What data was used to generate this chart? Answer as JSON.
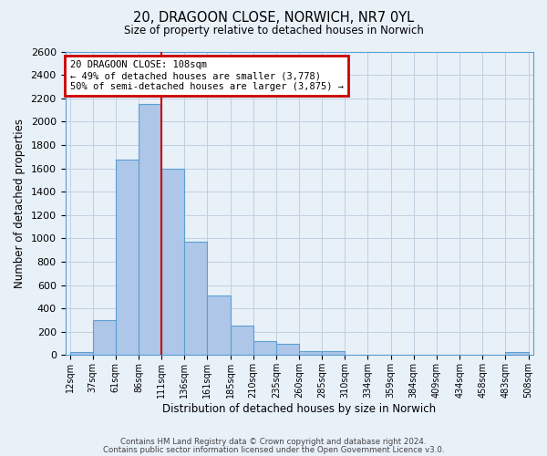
{
  "title1": "20, DRAGOON CLOSE, NORWICH, NR7 0YL",
  "title2": "Size of property relative to detached houses in Norwich",
  "xlabel": "Distribution of detached houses by size in Norwich",
  "ylabel": "Number of detached properties",
  "bin_labels": [
    "12sqm",
    "37sqm",
    "61sqm",
    "86sqm",
    "111sqm",
    "136sqm",
    "161sqm",
    "185sqm",
    "210sqm",
    "235sqm",
    "260sqm",
    "285sqm",
    "310sqm",
    "334sqm",
    "359sqm",
    "384sqm",
    "409sqm",
    "434sqm",
    "458sqm",
    "483sqm",
    "508sqm"
  ],
  "bar_heights": [
    25,
    300,
    1675,
    2150,
    1600,
    975,
    510,
    255,
    120,
    100,
    35,
    35,
    5,
    5,
    5,
    5,
    5,
    5,
    5,
    25
  ],
  "bar_color": "#aec6e8",
  "bar_edge_color": "#5a9fd4",
  "bar_edge_width": 0.8,
  "red_line_x": 4,
  "red_line_color": "#cc0000",
  "annotation_title": "20 DRAGOON CLOSE: 108sqm",
  "annotation_line1": "← 49% of detached houses are smaller (3,778)",
  "annotation_line2": "50% of semi-detached houses are larger (3,875) →",
  "annotation_box_color": "#cc0000",
  "annotation_bg": "#ffffff",
  "ylim": [
    0,
    2600
  ],
  "yticks": [
    0,
    200,
    400,
    600,
    800,
    1000,
    1200,
    1400,
    1600,
    1800,
    2000,
    2200,
    2400,
    2600
  ],
  "grid_color": "#c0d0e0",
  "background_color": "#e8f0f8",
  "footer1": "Contains HM Land Registry data © Crown copyright and database right 2024.",
  "footer2": "Contains public sector information licensed under the Open Government Licence v3.0."
}
